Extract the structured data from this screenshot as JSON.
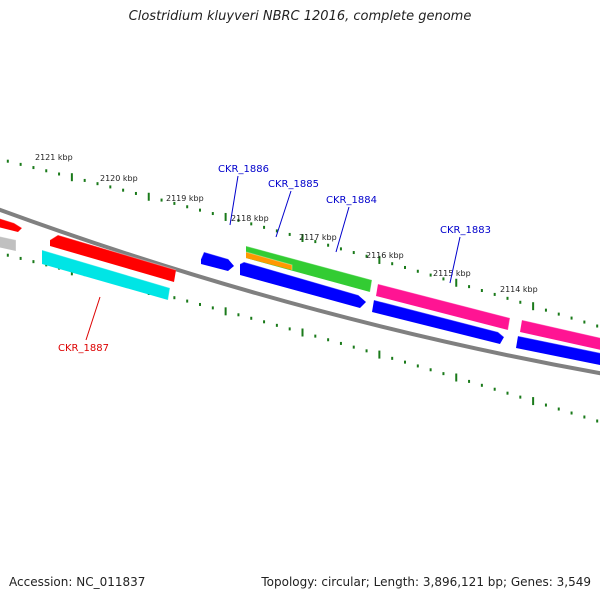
{
  "title": "Clostridium kluyveri NBRC 12016, complete genome",
  "footer": {
    "accession": "Accession: NC_011837",
    "summary": "Topology: circular; Length: 3,896,121 bp; Genes: 3,549"
  },
  "colors": {
    "backbone": "#808080",
    "ticks": "#1a7a1a",
    "label_blue": "#0000cc",
    "label_red": "#dd0000"
  },
  "scale_labels": [
    "2121 kbp",
    "2120 kbp",
    "2119 kbp",
    "2118 kbp",
    "2117 kbp",
    "2116 kbp",
    "2115 kbp",
    "2114 kbp"
  ],
  "gene_labels": [
    {
      "id": "CKR_1886",
      "color": "#0000cc"
    },
    {
      "id": "CKR_1885",
      "color": "#0000cc"
    },
    {
      "id": "CKR_1884",
      "color": "#0000cc"
    },
    {
      "id": "CKR_1883",
      "color": "#0000cc"
    },
    {
      "id": "CKR_1887",
      "color": "#dd0000"
    }
  ],
  "features": [
    {
      "name": "feature-red-edge",
      "color": "#ff0000"
    },
    {
      "name": "feature-gray-edge",
      "color": "#c0c0c0"
    },
    {
      "name": "feature-red",
      "color": "#ff0000"
    },
    {
      "name": "feature-cyan",
      "color": "#00e5e5"
    },
    {
      "name": "feature-blue-small",
      "color": "#0000ff"
    },
    {
      "name": "feature-green",
      "color": "#33cc33"
    },
    {
      "name": "feature-orange",
      "color": "#ff9900"
    },
    {
      "name": "feature-blue-long",
      "color": "#0000ff"
    },
    {
      "name": "feature-magenta-1",
      "color": "#ff1493"
    },
    {
      "name": "feature-blue-2",
      "color": "#0000ff"
    },
    {
      "name": "feature-magenta-2",
      "color": "#ff1493"
    },
    {
      "name": "feature-blue-3",
      "color": "#0000ff"
    }
  ]
}
